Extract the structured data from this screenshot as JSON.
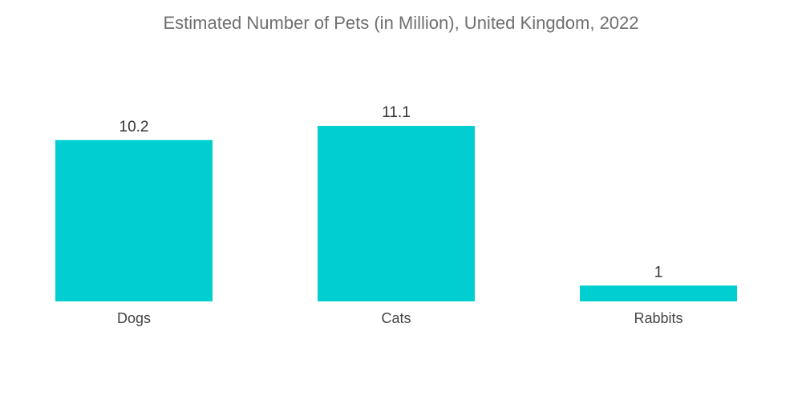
{
  "chart_data": {
    "type": "bar",
    "title": "Estimated Number of Pets (in Million), United Kingdom, 2022",
    "xlabel": "",
    "ylabel": "",
    "categories": [
      "Dogs",
      "Cats",
      "Rabbits"
    ],
    "values": [
      10.2,
      11.1,
      1
    ],
    "value_labels": [
      "10.2",
      "11.1",
      "1"
    ],
    "ylim": [
      0,
      11.1
    ],
    "grid": false,
    "legend": "none",
    "bar_color": "#00ced1"
  }
}
